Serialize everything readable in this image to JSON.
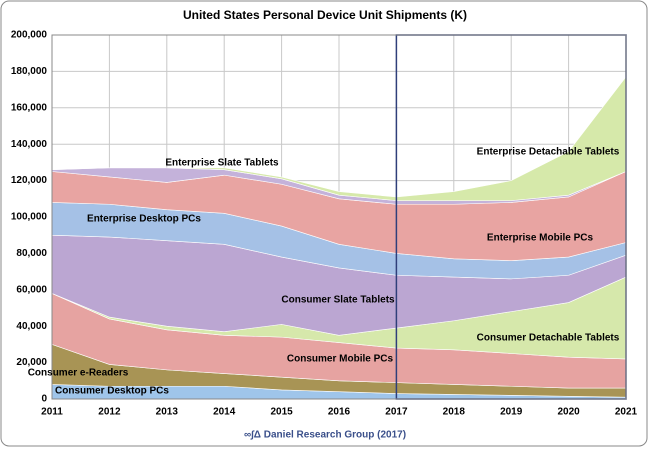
{
  "chart_data": {
    "type": "stacked-area",
    "title": "United States Personal Device Unit Shipments (K)",
    "source": "∞∫Δ Daniel Research Group (2017)",
    "x": [
      2011,
      2012,
      2013,
      2014,
      2015,
      2016,
      2017,
      2018,
      2019,
      2020,
      2021
    ],
    "xlim": [
      2011,
      2021
    ],
    "xticks": [
      2011,
      2012,
      2013,
      2014,
      2015,
      2016,
      2017,
      2018,
      2019,
      2020,
      2021
    ],
    "ylim": [
      0,
      200000
    ],
    "yticks": [
      0,
      {
        "value": 20000,
        "label": "20,000"
      },
      {
        "value": 40000,
        "label": "40,000"
      },
      {
        "value": 60000,
        "label": "60,000"
      },
      {
        "value": 80000,
        "label": "80,000"
      },
      {
        "value": 100000,
        "label": "100,000"
      },
      {
        "value": 120000,
        "label": "120,000"
      },
      {
        "value": 140000,
        "label": "140,000"
      },
      {
        "value": 160000,
        "label": "160,000"
      },
      {
        "value": 180000,
        "label": "180,000"
      },
      {
        "value": 200000,
        "label": "200,000"
      }
    ],
    "grid": true,
    "series": [
      {
        "name": "Consumer Desktop PCs",
        "color": "#9fc5ea",
        "values": [
          8000,
          7000,
          7000,
          7000,
          5000,
          4000,
          3000,
          2500,
          2000,
          1500,
          1000
        ]
      },
      {
        "name": "Consumer e-Readers",
        "color": "#a89455",
        "values": [
          22000,
          12000,
          9000,
          7000,
          7000,
          6000,
          6000,
          5500,
          5000,
          4500,
          5000
        ]
      },
      {
        "name": "Consumer Mobile PCs",
        "color": "#e6a3a1",
        "values": [
          28000,
          25000,
          22000,
          21000,
          22000,
          21000,
          19000,
          19000,
          18000,
          17000,
          16000
        ]
      },
      {
        "name": "Consumer Detachable Tablets",
        "color": "#d6e8ab",
        "values": [
          0,
          1000,
          2000,
          2000,
          7000,
          4000,
          11000,
          16000,
          23000,
          30000,
          45000
        ]
      },
      {
        "name": "Consumer Slate Tablets",
        "color": "#bba6d2",
        "values": [
          32000,
          44000,
          47000,
          48000,
          37000,
          37000,
          29000,
          24000,
          18000,
          15000,
          12000
        ]
      },
      {
        "name": "Enterprise Desktop PCs",
        "color": "#a5c1e6",
        "values": [
          18000,
          18000,
          17000,
          17000,
          17000,
          13000,
          12000,
          10000,
          10000,
          10000,
          7000
        ]
      },
      {
        "name": "Enterprise Mobile PCs",
        "color": "#e8a4a2",
        "values": [
          17000,
          15000,
          15000,
          21000,
          23000,
          25000,
          27000,
          30000,
          32000,
          33000,
          39000
        ]
      },
      {
        "name": "Enterprise Slate Tablets",
        "color": "#c4b2da",
        "values": [
          1000,
          5000,
          8000,
          3000,
          3000,
          2000,
          2000,
          2000,
          1000,
          1000,
          0
        ]
      },
      {
        "name": "Enterprise Detachable Tablets",
        "color": "#d6e9aa",
        "values": [
          0,
          0,
          0,
          1000,
          1000,
          2000,
          2000,
          5000,
          11000,
          24000,
          52000
        ]
      }
    ]
  }
}
